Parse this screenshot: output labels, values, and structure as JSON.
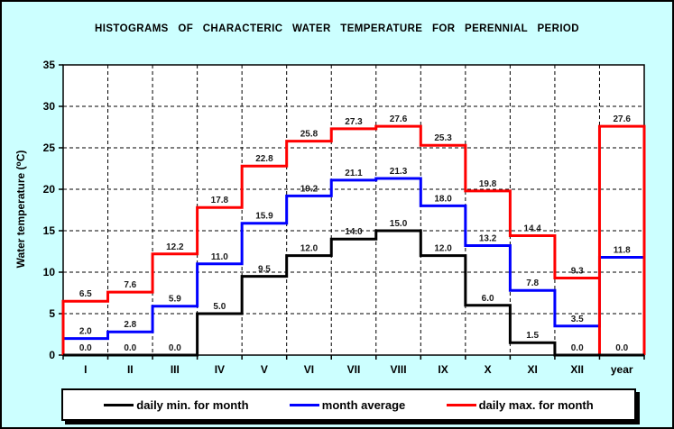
{
  "title": "HISTOGRAMS OF CHARACTERIC WATER TEMPERATURE FOR PERENNIAL PERIOD",
  "y_axis": {
    "label": "Water temperature (⁰C)"
  },
  "chart_data": {
    "type": "line",
    "subtype": "step-histogram",
    "title": "HISTOGRAMS OF CHARACTERIC WATER TEMPERATURE FOR PERENNIAL PERIOD",
    "categories": [
      "I",
      "II",
      "III",
      "IV",
      "V",
      "VI",
      "VII",
      "VIII",
      "IX",
      "X",
      "XI",
      "XII",
      "year"
    ],
    "xlabel": "",
    "ylabel": "Water temperature (⁰C)",
    "ylim": [
      0,
      35
    ],
    "ytick_step": 5,
    "grid": "dashed horizontal gridlines every 5 units and dashed vertical gridlines at every month boundary",
    "legend_position": "bottom",
    "series": [
      {
        "name": "daily min. for month",
        "color": "#000000",
        "year_style": "step",
        "values": [
          0.0,
          0.0,
          0.0,
          5.0,
          9.5,
          12.0,
          14.0,
          15.0,
          12.0,
          6.0,
          1.5,
          0.0,
          0.0
        ]
      },
      {
        "name": "month average",
        "color": "#0000ff",
        "year_style": "step",
        "values": [
          2.0,
          2.8,
          5.9,
          11.0,
          15.9,
          19.2,
          21.1,
          21.3,
          18.0,
          13.2,
          7.8,
          3.5,
          11.8
        ]
      },
      {
        "name": "daily max. for month",
        "color": "#ff0000",
        "year_style": "box",
        "values": [
          6.5,
          7.6,
          12.2,
          17.8,
          22.8,
          25.8,
          27.3,
          27.6,
          25.3,
          19.8,
          14.4,
          9.3,
          27.6
        ]
      }
    ]
  },
  "legend": {
    "items": [
      {
        "label": "daily min. for month",
        "color": "#000000"
      },
      {
        "label": "month average",
        "color": "#0000ff"
      },
      {
        "label": "daily max. for month",
        "color": "#ff0000"
      }
    ]
  },
  "colors": {
    "page_background": "#ccffff",
    "plot_background": "#ffffff",
    "grid": "#000000",
    "axis": "#000000",
    "value_label_text": "#1a1a1a"
  }
}
